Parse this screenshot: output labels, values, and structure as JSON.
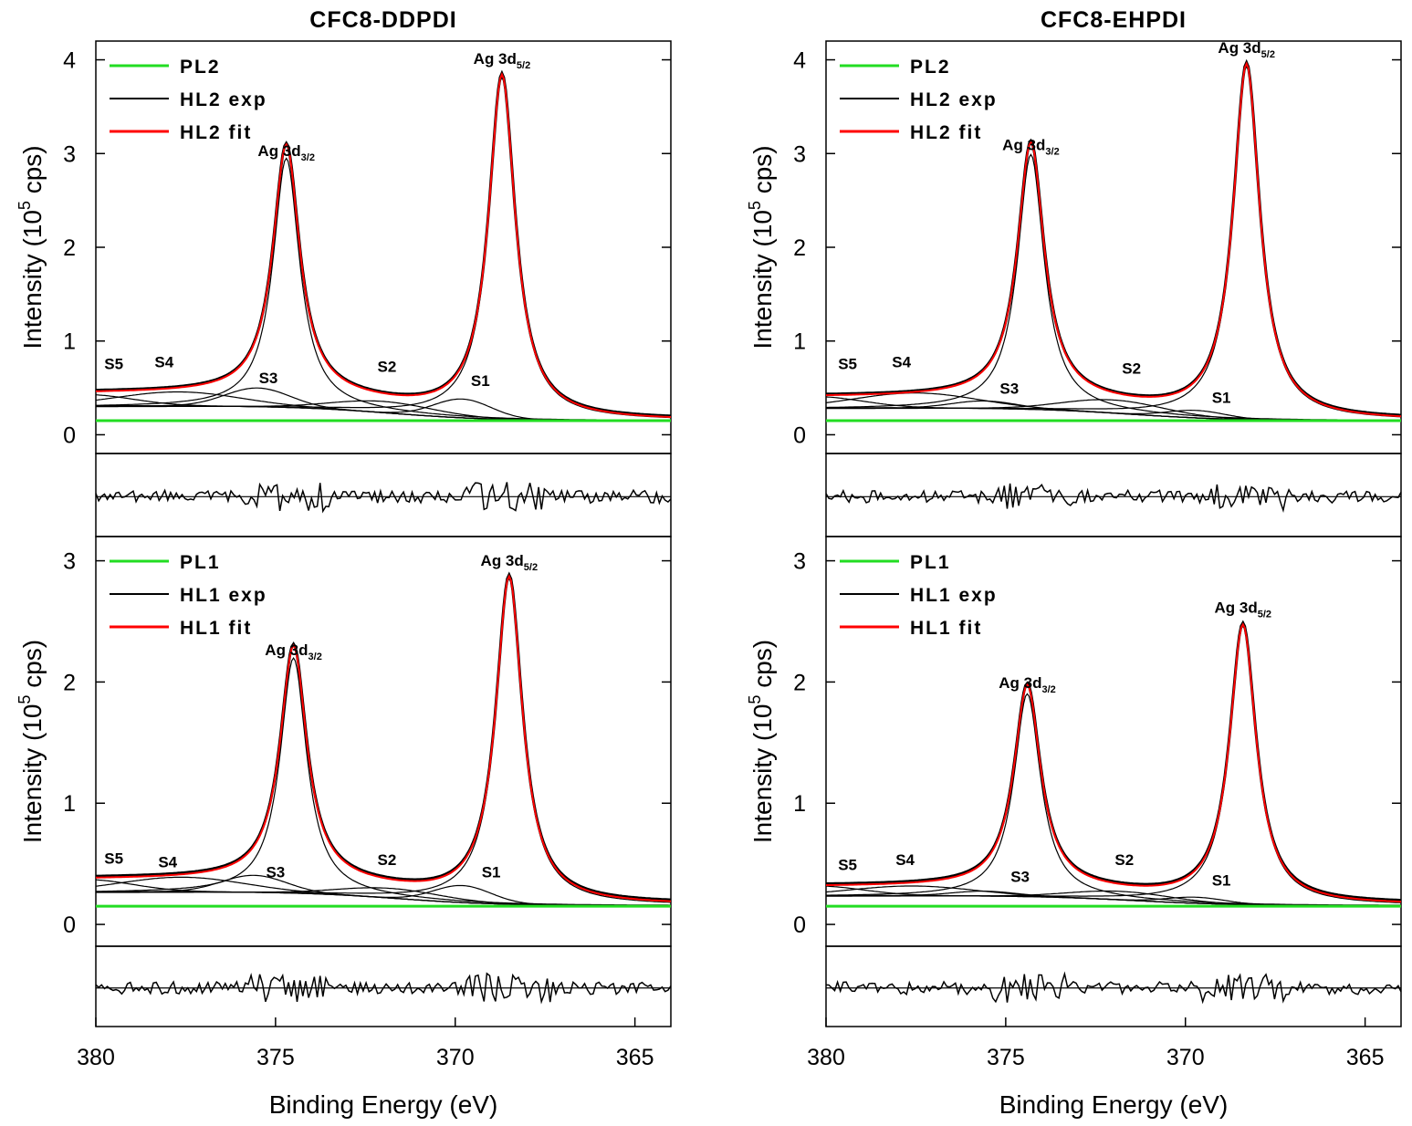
{
  "chart_data": {
    "type": "line",
    "x_range": [
      380,
      364
    ],
    "x_ticks": [
      380,
      375,
      370,
      365
    ],
    "xlabel": "Binding Energy (eV)",
    "ylabel_parts": {
      "main": "Intensity (10",
      "sup": "5",
      "tail": " cps)"
    },
    "columns": [
      {
        "title": "CFC8-DDPDI",
        "panels": [
          {
            "ylim": [
              -0.2,
              4.2
            ],
            "yticks": [
              0,
              1,
              2,
              3,
              4
            ],
            "legend": [
              {
                "label": "PL2",
                "color": "#22dd22"
              },
              {
                "label": "HL2 exp",
                "color": "#000000"
              },
              {
                "label": "HL2 fit",
                "color": "#ff0000"
              }
            ],
            "baseline": 0.15,
            "background": {
              "high": 0.44,
              "low": 0.15,
              "step_center": 371.8,
              "step_width": 1.4
            },
            "components": [
              {
                "label": "S5",
                "center": 380.3,
                "amplitude": 0.12,
                "width": 1.3
              },
              {
                "label": "S4",
                "center": 377.7,
                "amplitude": 0.15,
                "width": 1.7
              },
              {
                "label": "S3",
                "center": 375.5,
                "amplitude": 0.2,
                "width": 0.9
              },
              {
                "label": "S2",
                "center": 372.0,
                "amplitude": 0.12,
                "width": 1.4
              },
              {
                "label": "S1",
                "center": 369.8,
                "amplitude": 0.2,
                "width": 0.8
              }
            ],
            "peaks": [
              {
                "label": "Ag 3d",
                "sub": "3/2",
                "center": 374.7,
                "height": 2.82,
                "fwhm": 0.9
              },
              {
                "label": "Ag 3d",
                "sub": "5/2",
                "center": 368.7,
                "height": 3.8,
                "fwhm": 0.9
              }
            ],
            "component_labels": [
              {
                "text": "S5",
                "x": 379.5,
                "y": 0.7
              },
              {
                "text": "S4",
                "x": 378.1,
                "y": 0.72
              },
              {
                "text": "S3",
                "x": 375.2,
                "y": 0.55
              },
              {
                "text": "S2",
                "x": 371.9,
                "y": 0.67
              },
              {
                "text": "S1",
                "x": 369.3,
                "y": 0.52
              }
            ]
          },
          {
            "ylim": [
              -0.18,
              3.2
            ],
            "yticks": [
              0,
              1,
              2,
              3
            ],
            "legend": [
              {
                "label": "PL1",
                "color": "#22dd22"
              },
              {
                "label": "HL1 exp",
                "color": "#000000"
              },
              {
                "label": "HL1 fit",
                "color": "#ff0000"
              }
            ],
            "baseline": 0.15,
            "background": {
              "high": 0.37,
              "low": 0.16,
              "step_center": 371.6,
              "step_width": 1.4
            },
            "components": [
              {
                "label": "S5",
                "center": 380.3,
                "amplitude": 0.1,
                "width": 1.3
              },
              {
                "label": "S4",
                "center": 377.6,
                "amplitude": 0.12,
                "width": 1.7
              },
              {
                "label": "S3",
                "center": 375.6,
                "amplitude": 0.14,
                "width": 0.9
              },
              {
                "label": "S2",
                "center": 371.8,
                "amplitude": 0.08,
                "width": 1.4
              },
              {
                "label": "S1",
                "center": 369.8,
                "amplitude": 0.14,
                "width": 0.8
              }
            ],
            "peaks": [
              {
                "label": "Ag 3d",
                "sub": "3/2",
                "center": 374.5,
                "height": 2.1,
                "fwhm": 0.9
              },
              {
                "label": "Ag 3d",
                "sub": "5/2",
                "center": 368.5,
                "height": 2.84,
                "fwhm": 0.9
              }
            ],
            "component_labels": [
              {
                "text": "S5",
                "x": 379.5,
                "y": 0.5
              },
              {
                "text": "S4",
                "x": 378.0,
                "y": 0.47
              },
              {
                "text": "S3",
                "x": 375.0,
                "y": 0.39
              },
              {
                "text": "S2",
                "x": 371.9,
                "y": 0.49
              },
              {
                "text": "S1",
                "x": 369.0,
                "y": 0.39
              }
            ]
          }
        ]
      },
      {
        "title": "CFC8-EHPDI",
        "panels": [
          {
            "ylim": [
              -0.2,
              4.2
            ],
            "yticks": [
              0,
              1,
              2,
              3,
              4
            ],
            "legend": [
              {
                "label": "PL2",
                "color": "#22dd22"
              },
              {
                "label": "HL2 exp",
                "color": "#000000"
              },
              {
                "label": "HL2 fit",
                "color": "#ff0000"
              }
            ],
            "baseline": 0.15,
            "background": {
              "high": 0.4,
              "low": 0.15,
              "step_center": 371.5,
              "step_width": 1.4
            },
            "components": [
              {
                "label": "S5",
                "center": 380.3,
                "amplitude": 0.12,
                "width": 1.3
              },
              {
                "label": "S4",
                "center": 377.5,
                "amplitude": 0.16,
                "width": 1.7
              },
              {
                "label": "S3",
                "center": 375.6,
                "amplitude": 0.08,
                "width": 0.9
              },
              {
                "label": "S2",
                "center": 372.0,
                "amplitude": 0.14,
                "width": 1.4
              },
              {
                "label": "S1",
                "center": 369.7,
                "amplitude": 0.08,
                "width": 0.8
              }
            ],
            "peaks": [
              {
                "label": "Ag 3d",
                "sub": "3/2",
                "center": 374.3,
                "height": 2.88,
                "fwhm": 0.9
              },
              {
                "label": "Ag 3d",
                "sub": "5/2",
                "center": 368.3,
                "height": 3.92,
                "fwhm": 0.9
              }
            ],
            "component_labels": [
              {
                "text": "S5",
                "x": 379.4,
                "y": 0.7
              },
              {
                "text": "S4",
                "x": 377.9,
                "y": 0.72
              },
              {
                "text": "S3",
                "x": 374.9,
                "y": 0.44
              },
              {
                "text": "S2",
                "x": 371.5,
                "y": 0.65
              },
              {
                "text": "S1",
                "x": 369.0,
                "y": 0.34
              }
            ]
          },
          {
            "ylim": [
              -0.18,
              3.2
            ],
            "yticks": [
              0,
              1,
              2,
              3
            ],
            "legend": [
              {
                "label": "PL1",
                "color": "#22dd22"
              },
              {
                "label": "HL1 exp",
                "color": "#000000"
              },
              {
                "label": "HL1 fit",
                "color": "#ff0000"
              }
            ],
            "baseline": 0.15,
            "background": {
              "high": 0.31,
              "low": 0.16,
              "step_center": 371.4,
              "step_width": 1.4
            },
            "components": [
              {
                "label": "S5",
                "center": 380.3,
                "amplitude": 0.08,
                "width": 1.3
              },
              {
                "label": "S4",
                "center": 377.6,
                "amplitude": 0.08,
                "width": 1.7
              },
              {
                "label": "S3",
                "center": 375.6,
                "amplitude": 0.04,
                "width": 0.9
              },
              {
                "label": "S2",
                "center": 371.8,
                "amplitude": 0.07,
                "width": 1.4
              },
              {
                "label": "S1",
                "center": 369.7,
                "amplitude": 0.05,
                "width": 0.8
              }
            ],
            "peaks": [
              {
                "label": "Ag 3d",
                "sub": "3/2",
                "center": 374.4,
                "height": 1.83,
                "fwhm": 0.9
              },
              {
                "label": "Ag 3d",
                "sub": "5/2",
                "center": 368.4,
                "height": 2.45,
                "fwhm": 0.9
              }
            ],
            "component_labels": [
              {
                "text": "S5",
                "x": 379.4,
                "y": 0.45
              },
              {
                "text": "S4",
                "x": 377.8,
                "y": 0.49
              },
              {
                "text": "S3",
                "x": 374.6,
                "y": 0.35
              },
              {
                "text": "S2",
                "x": 371.7,
                "y": 0.49
              },
              {
                "text": "S1",
                "x": 369.0,
                "y": 0.32
              }
            ]
          }
        ]
      }
    ]
  }
}
